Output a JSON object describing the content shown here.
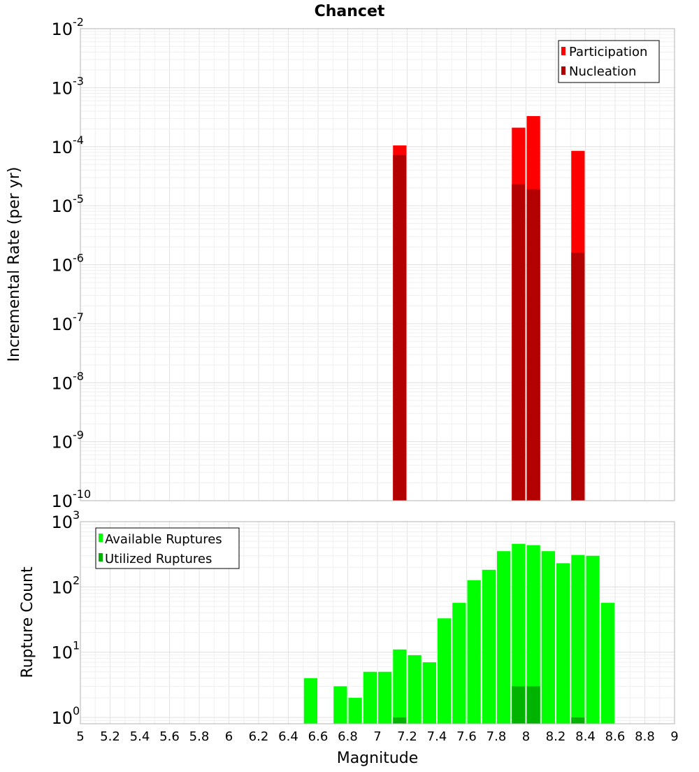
{
  "title": "Chancet",
  "colors": {
    "participation": "#ff0000",
    "nucleation": "#b30000",
    "available": "#00ff00",
    "utilized": "#00b300",
    "grid": "#e6e6e6",
    "frame": "#b3b3b3"
  },
  "chart_data": [
    {
      "type": "bar",
      "id": "rates",
      "ylabel": "Incremental Rate (per yr)",
      "xlabel": "",
      "scale": "log",
      "xlim": [
        5,
        9
      ],
      "ylim": [
        1e-10,
        0.01
      ],
      "y_ticks": [
        {
          "exp": "-10",
          "value": 1e-10
        },
        {
          "exp": "-9",
          "value": 1e-09
        },
        {
          "exp": "-8",
          "value": 1e-08
        },
        {
          "exp": "-7",
          "value": 1e-07
        },
        {
          "exp": "-6",
          "value": 1e-06
        },
        {
          "exp": "-5",
          "value": 1e-05
        },
        {
          "exp": "-4",
          "value": 0.0001
        },
        {
          "exp": "-3",
          "value": 0.001
        },
        {
          "exp": "-2",
          "value": 0.01
        }
      ],
      "bin_width": 0.1,
      "legend_position": "top-right",
      "grid": true,
      "series": [
        {
          "name": "Participation",
          "key": "participation",
          "points": [
            {
              "x": 7.15,
              "y": 0.000105
            },
            {
              "x": 7.95,
              "y": 0.00021
            },
            {
              "x": 8.05,
              "y": 0.00033
            },
            {
              "x": 8.35,
              "y": 8.5e-05
            }
          ]
        },
        {
          "name": "Nucleation",
          "key": "nucleation",
          "points": [
            {
              "x": 7.15,
              "y": 7.2e-05
            },
            {
              "x": 7.95,
              "y": 2.3e-05
            },
            {
              "x": 8.05,
              "y": 1.9e-05
            },
            {
              "x": 8.35,
              "y": 1.6e-06
            }
          ]
        }
      ]
    },
    {
      "type": "bar",
      "id": "counts",
      "ylabel": "Rupture Count",
      "xlabel": "Magnitude",
      "scale": "log",
      "xlim": [
        5,
        9
      ],
      "ylim": [
        0.8,
        1000
      ],
      "y_ticks": [
        {
          "exp": "0",
          "value": 1
        },
        {
          "exp": "1",
          "value": 10
        },
        {
          "exp": "2",
          "value": 100
        },
        {
          "exp": "3",
          "value": 1000
        }
      ],
      "x_ticks": [
        "5",
        "5.2",
        "5.4",
        "5.6",
        "5.8",
        "6",
        "6.2",
        "6.4",
        "6.6",
        "6.8",
        "7",
        "7.2",
        "7.4",
        "7.6",
        "7.8",
        "8",
        "8.2",
        "8.4",
        "8.6",
        "8.8",
        "9"
      ],
      "bin_width": 0.1,
      "legend_position": "top-left",
      "grid": true,
      "series": [
        {
          "name": "Available Ruptures",
          "key": "available",
          "points": [
            {
              "x": 6.55,
              "y": 4
            },
            {
              "x": 6.75,
              "y": 3
            },
            {
              "x": 6.85,
              "y": 2
            },
            {
              "x": 6.95,
              "y": 5
            },
            {
              "x": 7.05,
              "y": 5
            },
            {
              "x": 7.15,
              "y": 11
            },
            {
              "x": 7.25,
              "y": 9
            },
            {
              "x": 7.35,
              "y": 7
            },
            {
              "x": 7.45,
              "y": 33
            },
            {
              "x": 7.55,
              "y": 57
            },
            {
              "x": 7.65,
              "y": 127
            },
            {
              "x": 7.75,
              "y": 183
            },
            {
              "x": 7.85,
              "y": 353
            },
            {
              "x": 7.95,
              "y": 458
            },
            {
              "x": 8.05,
              "y": 437
            },
            {
              "x": 8.15,
              "y": 353
            },
            {
              "x": 8.25,
              "y": 231
            },
            {
              "x": 8.35,
              "y": 309
            },
            {
              "x": 8.45,
              "y": 300
            },
            {
              "x": 8.55,
              "y": 57
            }
          ]
        },
        {
          "name": "Utilized Ruptures",
          "key": "utilized",
          "points": [
            {
              "x": 7.15,
              "y": 1
            },
            {
              "x": 7.95,
              "y": 3
            },
            {
              "x": 8.05,
              "y": 3
            },
            {
              "x": 8.35,
              "y": 1
            }
          ]
        }
      ]
    }
  ]
}
